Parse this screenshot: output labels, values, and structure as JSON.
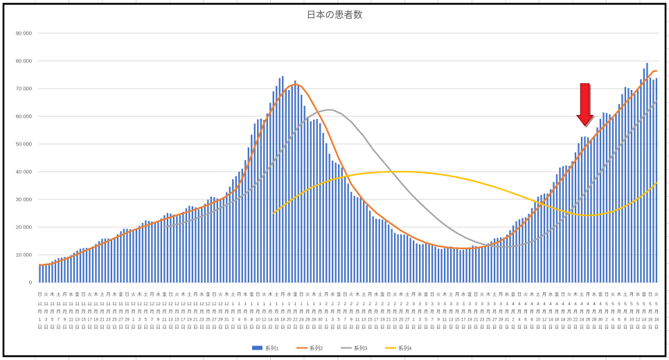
{
  "chart": {
    "title": "日本の患者数",
    "colors": {
      "bar": "#4472C4",
      "line2": "#ED7D31",
      "line3": "#A5A5A5",
      "line4": "#FFC000",
      "grid": "#D9D9D9",
      "text": "#595959",
      "sheet_line": "#D9D9D9",
      "border": "#000000",
      "arrow_fill": "#EE1C25",
      "arrow_edge": "#9A0E13"
    },
    "y_axis": {
      "min": 0,
      "max": 90000,
      "step": 10000,
      "tick_labels": [
        "0",
        "10 000",
        "20 000",
        "30 000",
        "40 000",
        "50 000",
        "60 000",
        "70 000",
        "80 000",
        "90 000"
      ]
    },
    "x_axis": {
      "weekdays": [
        "日",
        "月",
        "火",
        "水",
        "木",
        "金",
        "土"
      ],
      "start_weekday_index": 0,
      "months": [
        {
          "label": "11",
          "days": 30
        },
        {
          "label": "12",
          "days": 31
        },
        {
          "label": "1",
          "days": 31
        },
        {
          "label": "2",
          "days": 28
        },
        {
          "label": "3",
          "days": 31
        },
        {
          "label": "4",
          "days": 30
        },
        {
          "label": "5",
          "days": 18
        }
      ],
      "month_suffix": "月",
      "day_suffix": "日",
      "label_every": 2
    },
    "legend": [
      {
        "label": "系列1",
        "type": "bar",
        "color": "#4472C4"
      },
      {
        "label": "系列2",
        "type": "line",
        "color": "#ED7D31"
      },
      {
        "label": "系列3",
        "type": "line",
        "color": "#A5A5A5"
      },
      {
        "label": "系列4",
        "type": "line",
        "color": "#FFC000"
      }
    ],
    "annotation": {
      "shape": "down-arrow",
      "day_index": 175,
      "value_top": 71800,
      "value_tip": 56600
    },
    "chart_data": {
      "type": "bar",
      "title": "日本の患者数",
      "ylim": [
        0,
        90000
      ],
      "grid": "horizontal",
      "legend_position": "bottom",
      "x_description": "daily dates 11月1日〜5月18日 (199 days), tick labels every 2 days with weekday",
      "series": [
        {
          "name": "系列1",
          "type": "bar",
          "color": "#4472C4",
          "values": [
            6700,
            6600,
            6500,
            6900,
            7600,
            8200,
            8800,
            9000,
            9200,
            9300,
            9800,
            10700,
            11500,
            12200,
            12400,
            12500,
            12500,
            13000,
            13900,
            14900,
            15800,
            15900,
            15900,
            15800,
            16300,
            17400,
            18500,
            19400,
            19400,
            19200,
            18800,
            19300,
            20400,
            21500,
            22400,
            22200,
            22000,
            21500,
            21900,
            23100,
            24300,
            25100,
            24900,
            24500,
            23900,
            24300,
            25500,
            26800,
            27700,
            27500,
            27100,
            26400,
            26900,
            28400,
            29900,
            31000,
            30800,
            30300,
            29800,
            30700,
            32600,
            34600,
            37300,
            38400,
            40000,
            41100,
            44200,
            48800,
            53400,
            57400,
            58900,
            59200,
            58700,
            61000,
            64900,
            69000,
            71000,
            73800,
            74500,
            70000,
            69500,
            70900,
            72900,
            71500,
            67800,
            63800,
            59800,
            58200,
            58800,
            59000,
            57500,
            54000,
            50300,
            46500,
            44000,
            43300,
            42700,
            41500,
            38400,
            35700,
            32700,
            31300,
            30800,
            30600,
            29900,
            27900,
            25900,
            23900,
            23000,
            22900,
            22700,
            22200,
            20900,
            19400,
            17900,
            17400,
            17400,
            17300,
            17000,
            16100,
            15200,
            14100,
            13700,
            13900,
            14100,
            14100,
            13400,
            12900,
            12200,
            12100,
            12400,
            12800,
            13000,
            12600,
            12200,
            11700,
            11800,
            12200,
            12700,
            13300,
            13100,
            12900,
            12800,
            13200,
            14100,
            14900,
            15900,
            16100,
            16300,
            16200,
            17300,
            18900,
            20600,
            22100,
            22800,
            23300,
            23500,
            24800,
            26900,
            29100,
            31000,
            31600,
            32100,
            32100,
            33700,
            36300,
            39100,
            41500,
            42000,
            42300,
            42100,
            43800,
            47000,
            50300,
            52600,
            52700,
            52400,
            51600,
            52900,
            56000,
            59100,
            61400,
            61200,
            60700,
            59400,
            61000,
            64400,
            68000,
            70600,
            70200,
            69500,
            68000,
            69600,
            73400,
            77300,
            79300,
            74000,
            73200,
            73800
          ]
        },
        {
          "name": "系列2",
          "type": "line",
          "color": "#ED7D31",
          "points": [
            [
              0,
              6200
            ],
            [
              4,
              6800
            ],
            [
              9,
              8800
            ],
            [
              14,
              11200
            ],
            [
              19,
              13500
            ],
            [
              24,
              16000
            ],
            [
              29,
              18500
            ],
            [
              34,
              20500
            ],
            [
              39,
              22500
            ],
            [
              44,
              24300
            ],
            [
              49,
              26000
            ],
            [
              54,
              28000
            ],
            [
              59,
              30500
            ],
            [
              61,
              32000
            ],
            [
              63,
              33600
            ],
            [
              65,
              37500
            ],
            [
              67,
              43000
            ],
            [
              69,
              49000
            ],
            [
              72,
              57500
            ],
            [
              75,
              63500
            ],
            [
              77,
              67000
            ],
            [
              79,
              69800
            ],
            [
              80,
              70800
            ],
            [
              82,
              71700
            ],
            [
              84,
              70800
            ],
            [
              86,
              68000
            ],
            [
              88,
              64000
            ],
            [
              90,
              60000
            ],
            [
              92,
              55700
            ],
            [
              96,
              44800
            ],
            [
              100,
              35500
            ],
            [
              104,
              29500
            ],
            [
              108,
              25200
            ],
            [
              112,
              21800
            ],
            [
              116,
              18700
            ],
            [
              120,
              16200
            ],
            [
              124,
              14300
            ],
            [
              128,
              13100
            ],
            [
              132,
              12500
            ],
            [
              135,
              12300
            ],
            [
              139,
              12300
            ],
            [
              143,
              13000
            ],
            [
              147,
              14500
            ],
            [
              151,
              17000
            ],
            [
              155,
              21000
            ],
            [
              159,
              25800
            ],
            [
              163,
              30800
            ],
            [
              167,
              36500
            ],
            [
              171,
              42500
            ],
            [
              175,
              48800
            ],
            [
              179,
              54000
            ],
            [
              183,
              58500
            ],
            [
              187,
              63500
            ],
            [
              191,
              68500
            ],
            [
              194,
              72500
            ],
            [
              196,
              75000
            ],
            [
              197,
              76300
            ],
            [
              198,
              76400
            ]
          ]
        },
        {
          "name": "系列3",
          "type": "line",
          "color": "#A5A5A5",
          "points": [
            [
              40,
              20000
            ],
            [
              45,
              21200
            ],
            [
              50,
              23000
            ],
            [
              55,
              25200
            ],
            [
              59,
              27500
            ],
            [
              63,
              29800
            ],
            [
              66,
              32000
            ],
            [
              68,
              34000
            ],
            [
              71,
              37500
            ],
            [
              74,
              42000
            ],
            [
              77,
              46700
            ],
            [
              80,
              51500
            ],
            [
              83,
              56200
            ],
            [
              86,
              59500
            ],
            [
              89,
              61500
            ],
            [
              92,
              62300
            ],
            [
              94,
              62300
            ],
            [
              97,
              60800
            ],
            [
              100,
              58000
            ],
            [
              104,
              52800
            ],
            [
              107,
              48000
            ],
            [
              110,
              44000
            ],
            [
              113,
              40000
            ],
            [
              116,
              36000
            ],
            [
              119,
              32200
            ],
            [
              122,
              28800
            ],
            [
              125,
              25600
            ],
            [
              128,
              22600
            ],
            [
              131,
              20000
            ],
            [
              134,
              17800
            ],
            [
              137,
              16000
            ],
            [
              140,
              14600
            ],
            [
              143,
              13600
            ],
            [
              146,
              13000
            ],
            [
              149,
              12800
            ],
            [
              152,
              13000
            ],
            [
              155,
              13700
            ],
            [
              158,
              14800
            ],
            [
              161,
              16500
            ],
            [
              164,
              18900
            ],
            [
              167,
              21900
            ],
            [
              170,
              25400
            ],
            [
              173,
              29400
            ],
            [
              176,
              33800
            ],
            [
              179,
              38400
            ],
            [
              182,
              43000
            ],
            [
              185,
              47500
            ],
            [
              188,
              52000
            ],
            [
              191,
              56200
            ],
            [
              194,
              60200
            ],
            [
              196,
              62800
            ],
            [
              198,
              65500
            ]
          ]
        },
        {
          "name": "系列4",
          "type": "line",
          "color": "#FFC000",
          "points": [
            [
              75,
              25000
            ],
            [
              78,
              27600
            ],
            [
              81,
              30000
            ],
            [
              84,
              32200
            ],
            [
              87,
              34200
            ],
            [
              90,
              35600
            ],
            [
              94,
              37200
            ],
            [
              98,
              38300
            ],
            [
              102,
              39100
            ],
            [
              106,
              39600
            ],
            [
              110,
              39900
            ],
            [
              114,
              40000
            ],
            [
              118,
              40000
            ],
            [
              122,
              39800
            ],
            [
              126,
              39400
            ],
            [
              130,
              38800
            ],
            [
              134,
              38000
            ],
            [
              138,
              37000
            ],
            [
              142,
              35800
            ],
            [
              146,
              34500
            ],
            [
              150,
              33000
            ],
            [
              154,
              31400
            ],
            [
              158,
              29700
            ],
            [
              162,
              28000
            ],
            [
              166,
              26400
            ],
            [
              169,
              25400
            ],
            [
              172,
              24600
            ],
            [
              175,
              24200
            ],
            [
              178,
              24300
            ],
            [
              181,
              24800
            ],
            [
              184,
              25700
            ],
            [
              187,
              27000
            ],
            [
              190,
              28800
            ],
            [
              193,
              31000
            ],
            [
              195,
              32800
            ],
            [
              197,
              34800
            ],
            [
              198,
              36000
            ]
          ]
        }
      ]
    }
  }
}
